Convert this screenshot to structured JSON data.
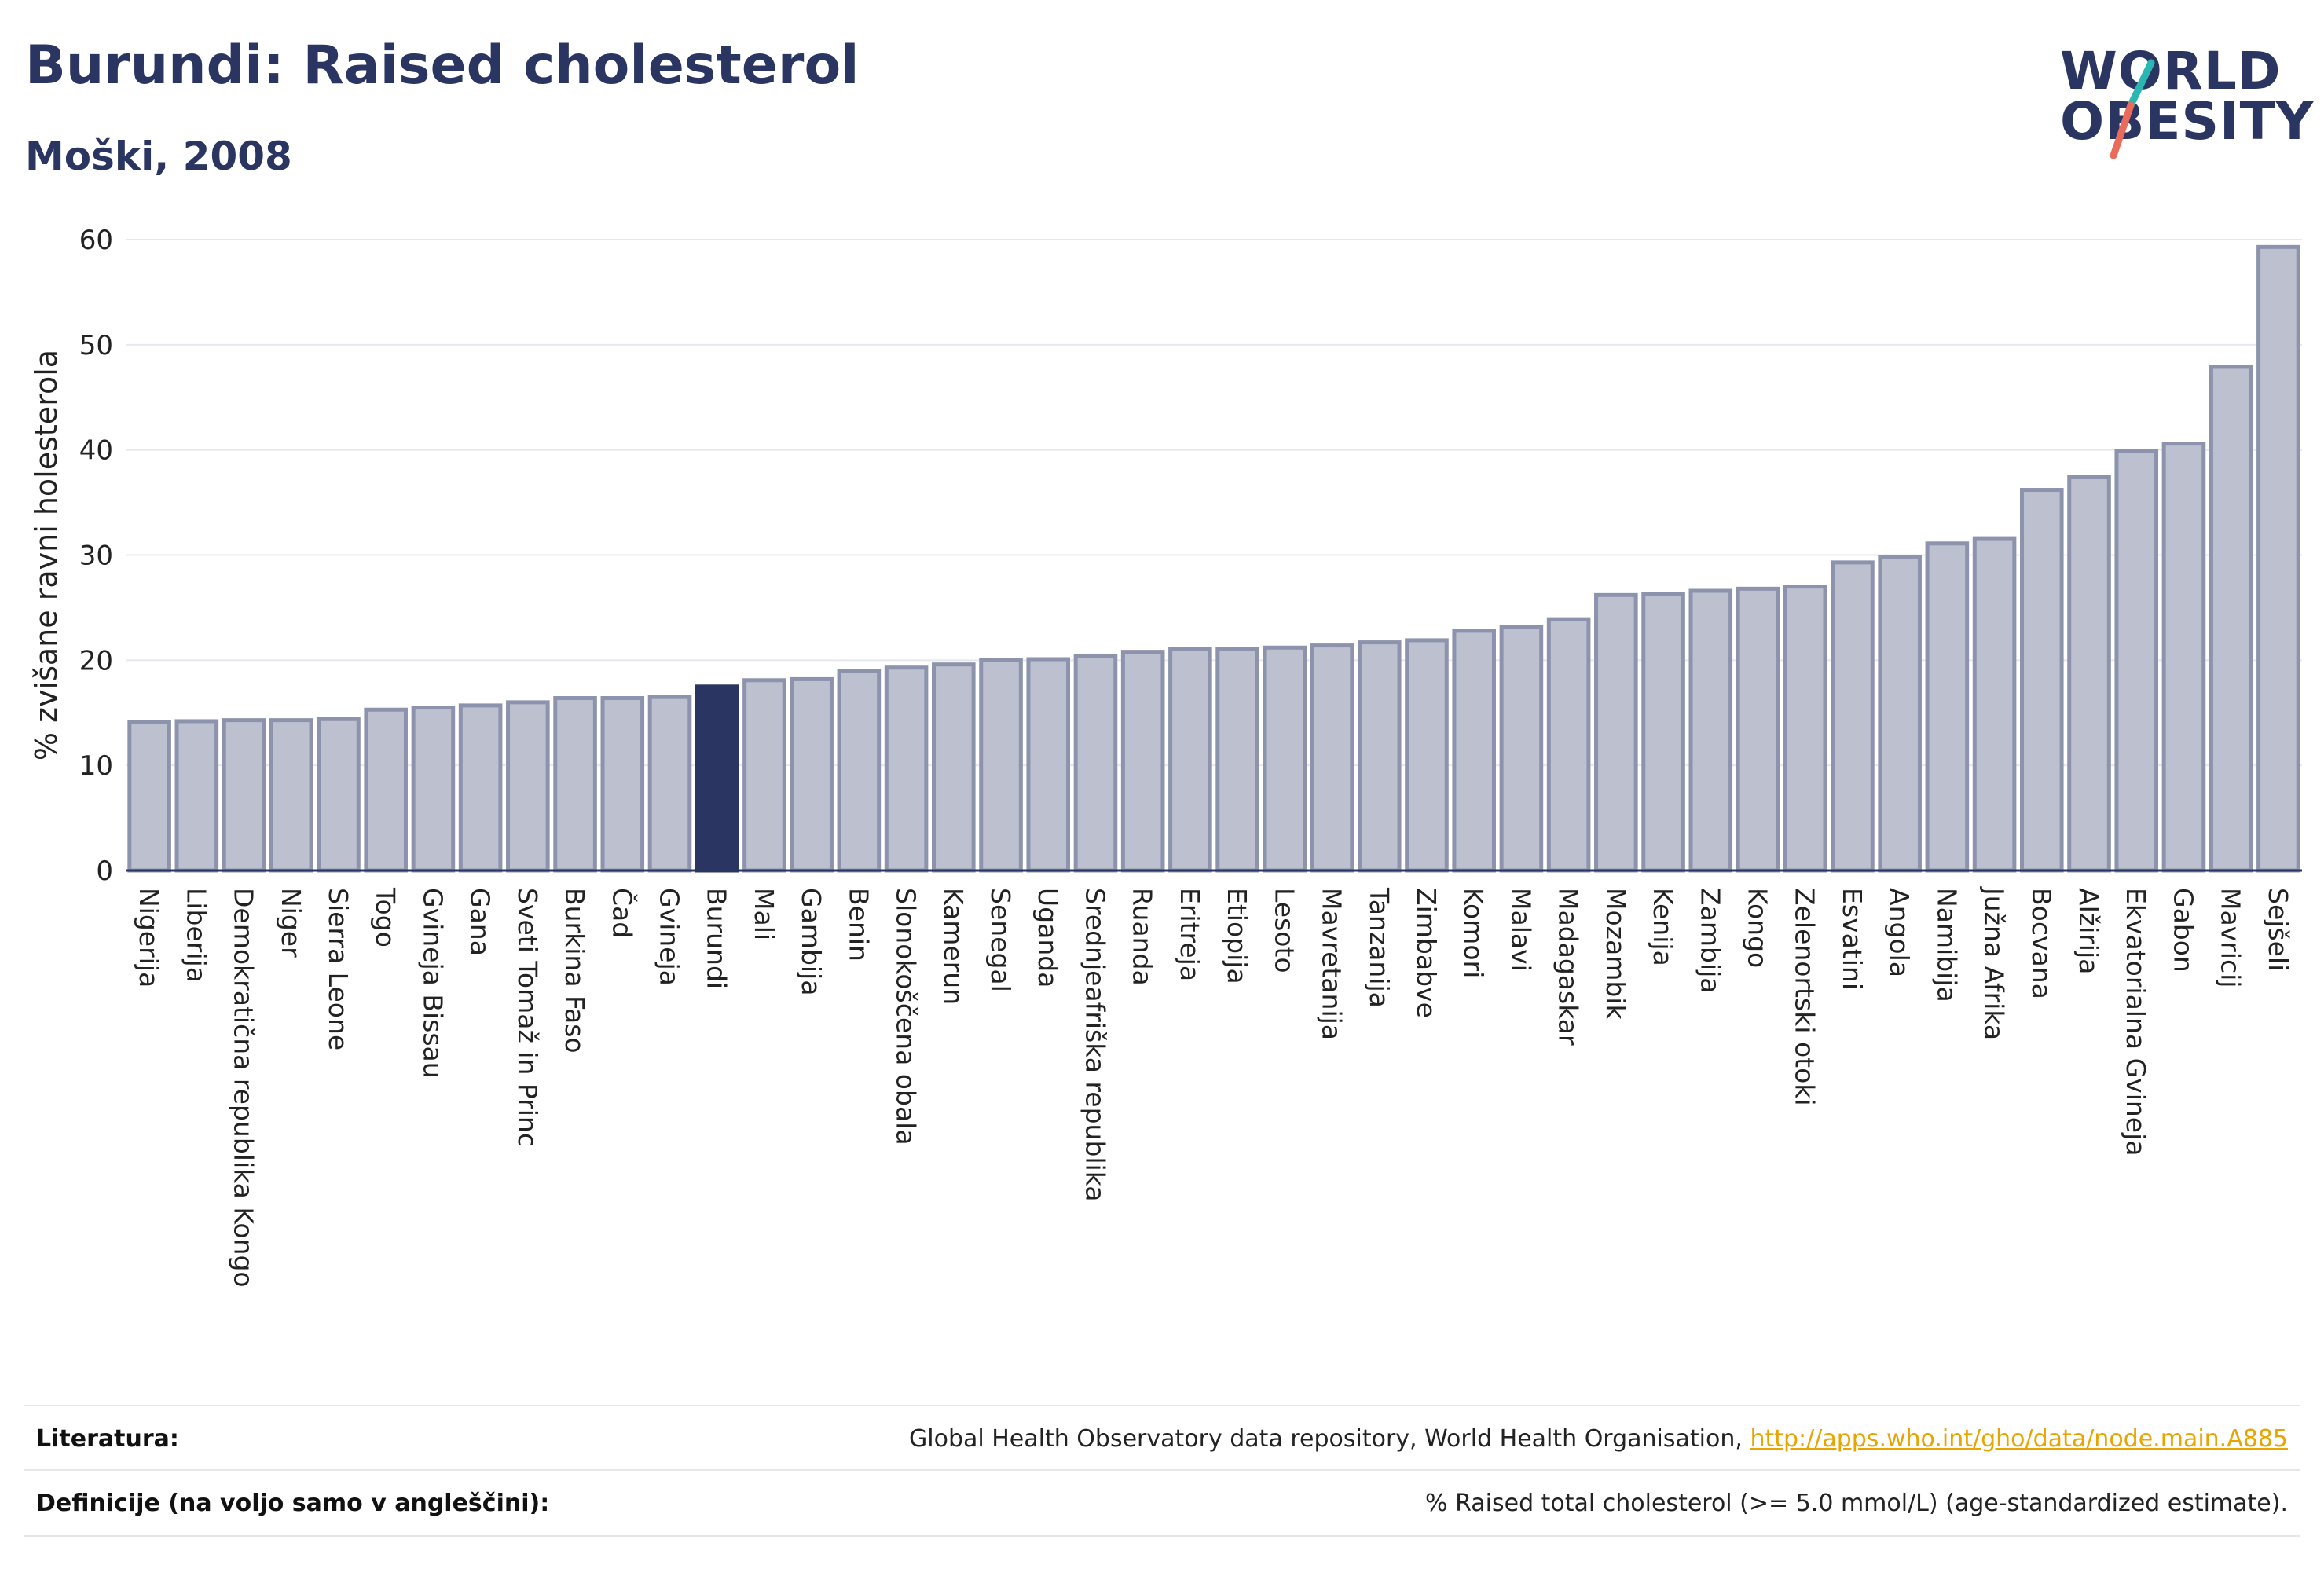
{
  "header": {
    "title": "Burundi: Raised cholesterol",
    "subtitle": "Moški, 2008"
  },
  "logo": {
    "line1": "WORLD",
    "line2": "OBESITY",
    "slash_colors": [
      "#2ab7b1",
      "#e96b5a"
    ]
  },
  "colors": {
    "bar": "#bcc0cf",
    "bar_stroke": "#8d93ad",
    "highlight": "#2b3561",
    "grid": "#e6e8ee",
    "axis": "#2b3561"
  },
  "chart_data": {
    "type": "bar",
    "ylabel": "% zvišane ravni holesterola",
    "ylim": [
      0,
      60
    ],
    "yticks": [
      0,
      10,
      20,
      30,
      40,
      50,
      60
    ],
    "highlight": "Burundi",
    "categories": [
      "Nigerija",
      "Liberija",
      "Demokratična republika Kongo",
      "Niger",
      "Sierra Leone",
      "Togo",
      "Gvineja Bissau",
      "Gana",
      "Sveti Tomaž in Princ",
      "Burkina Faso",
      "Čad",
      "Gvineja",
      "Burundi",
      "Mali",
      "Gambija",
      "Benin",
      "Slonokoščena obala",
      "Kamerun",
      "Senegal",
      "Uganda",
      "Srednjeafriška republika",
      "Ruanda",
      "Eritreja",
      "Etiopija",
      "Lesoto",
      "Mavretanija",
      "Tanzanija",
      "Zimbabve",
      "Komori",
      "Malavi",
      "Madagaskar",
      "Mozambik",
      "Kenija",
      "Zambija",
      "Kongo",
      "Zelenortski otoki",
      "Esvatini",
      "Angola",
      "Namibija",
      "Južna Afrika",
      "Bocvana",
      "Alžirija",
      "Ekvatorialna Gvineja",
      "Gabon",
      "Mavricij",
      "Sejšeli"
    ],
    "values": [
      14.1,
      14.2,
      14.3,
      14.3,
      14.4,
      15.3,
      15.5,
      15.7,
      16.0,
      16.4,
      16.4,
      16.5,
      17.5,
      18.1,
      18.2,
      19.0,
      19.3,
      19.6,
      20.0,
      20.1,
      20.4,
      20.8,
      21.1,
      21.1,
      21.2,
      21.4,
      21.7,
      21.9,
      22.8,
      23.2,
      23.9,
      26.2,
      26.3,
      26.6,
      26.8,
      27.0,
      29.3,
      29.8,
      31.1,
      31.6,
      36.2,
      37.4,
      39.9,
      40.6,
      47.9,
      59.3
    ]
  },
  "footer": {
    "literature_label": "Literatura:",
    "literature_text": "Global Health Observatory data repository, World Health Organisation, ",
    "literature_link": "http://apps.who.int/gho/data/node.main.A885",
    "definitions_label": "Definicije (na voljo samo v angleščini):",
    "definitions_text": "% Raised total cholesterol (>= 5.0 mmol/L) (age-standardized estimate)."
  }
}
